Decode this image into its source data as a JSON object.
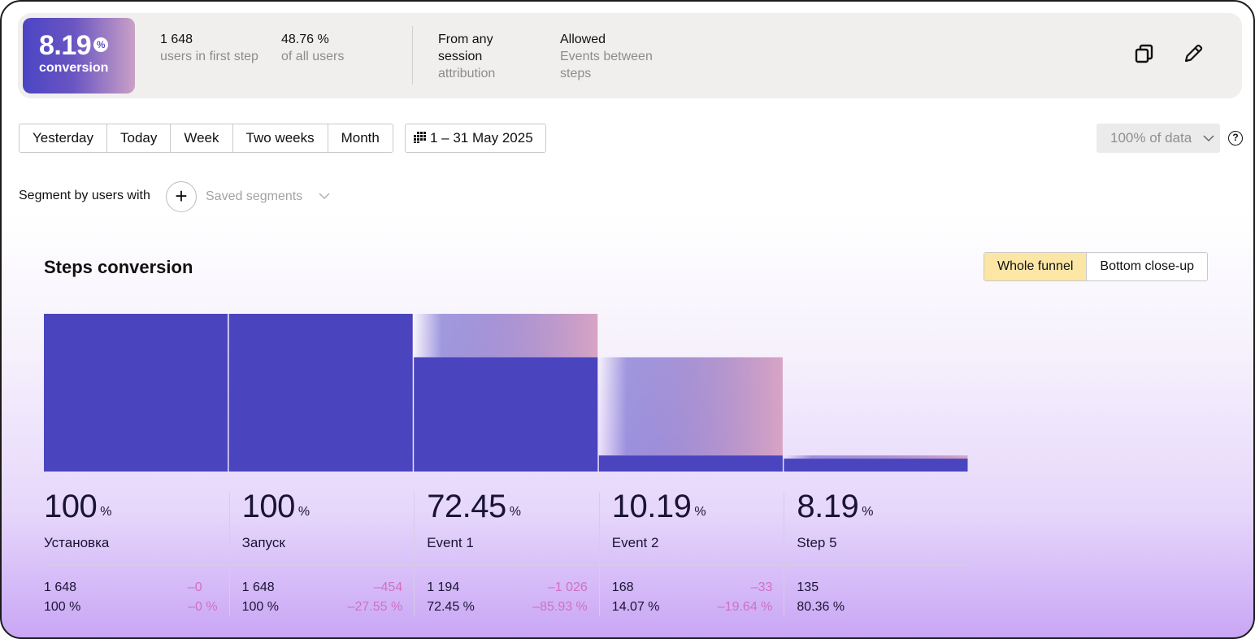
{
  "summary": {
    "conversion_value": "8.19",
    "conversion_unit": "%",
    "conversion_label": "conversion",
    "users_first_step_value": "1 648",
    "users_first_step_label": "users in first step",
    "share_value": "48.76 %",
    "share_label": "of all users",
    "attribution_value": "From any session",
    "attribution_label": "attribution",
    "events_value": "Allowed",
    "events_label": "Events between steps",
    "icons": [
      "copy-icon",
      "pencil-icon"
    ]
  },
  "periods": [
    "Yesterday",
    "Today",
    "Week",
    "Two weeks",
    "Month"
  ],
  "date_range": "1 – 31 May 2025",
  "sampling": "100% of data",
  "help_glyph": "?",
  "segment": {
    "label": "Segment by users with",
    "plus": "+",
    "saved_placeholder": "Saved segments"
  },
  "section_title": "Steps conversion",
  "view_toggle": [
    "Whole funnel",
    "Bottom close-up"
  ],
  "colors": {
    "bar": "#4a44bf",
    "dropoff_start": "#5a4fc6",
    "dropoff_end": "#d8a4c4",
    "negative": "#d070c4",
    "toggle_active": "#fbe6a6"
  },
  "steps": [
    {
      "pct": "100",
      "unit": "%",
      "name": "Установка",
      "users": "1 648",
      "share": "100 %",
      "lost": "–0",
      "lost_pct": "–0 %"
    },
    {
      "pct": "100",
      "unit": "%",
      "name": "Запуск",
      "users": "1 648",
      "share": "100 %",
      "lost": "–454",
      "lost_pct": "–27.55 %"
    },
    {
      "pct": "72.45",
      "unit": "%",
      "name": "Event 1",
      "users": "1 194",
      "share": "72.45 %",
      "lost": "–1 026",
      "lost_pct": "–85.93 %"
    },
    {
      "pct": "10.19",
      "unit": "%",
      "name": "Event 2",
      "users": "168",
      "share": "14.07 %",
      "lost": "–33",
      "lost_pct": "–19.64 %"
    },
    {
      "pct": "8.19",
      "unit": "%",
      "name": "Step 5",
      "users": "135",
      "share": "80.36 %",
      "lost": "",
      "lost_pct": ""
    }
  ],
  "chart_data": {
    "type": "bar",
    "categories": [
      "Установка",
      "Запуск",
      "Event 1",
      "Event 2",
      "Step 5"
    ],
    "values": [
      100,
      100,
      72.45,
      10.19,
      8.19
    ],
    "ylim": [
      0,
      100
    ],
    "grid": false
  }
}
